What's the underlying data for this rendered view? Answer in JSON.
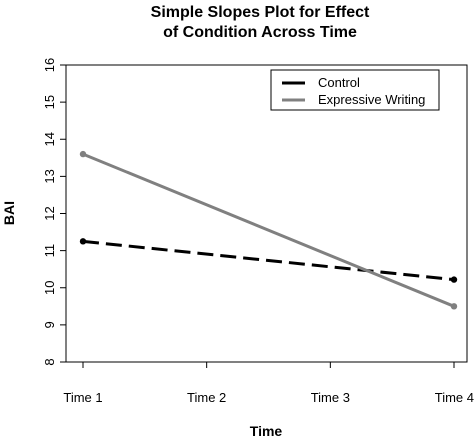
{
  "chart_data": {
    "type": "line",
    "title_line1": "Simple Slopes Plot  for Effect",
    "title_line2": "of Condition Across Time",
    "xlabel": "Time",
    "ylabel": "BAI",
    "categories": [
      "Time 1",
      "Time 2",
      "Time 3",
      "Time 4"
    ],
    "x_positions": [
      1,
      4
    ],
    "ylim": [
      8,
      16
    ],
    "yticks": [
      8,
      9,
      10,
      11,
      12,
      13,
      14,
      15,
      16
    ],
    "grid": false,
    "legend_position": "top-right",
    "series": [
      {
        "name": "Control",
        "x": [
          1,
          4
        ],
        "values": [
          11.25,
          10.22
        ],
        "color": "#000000",
        "style": "dashed"
      },
      {
        "name": "Expressive Writing",
        "x": [
          1,
          4
        ],
        "values": [
          13.6,
          9.5
        ],
        "color": "#808080",
        "style": "solid"
      }
    ]
  }
}
